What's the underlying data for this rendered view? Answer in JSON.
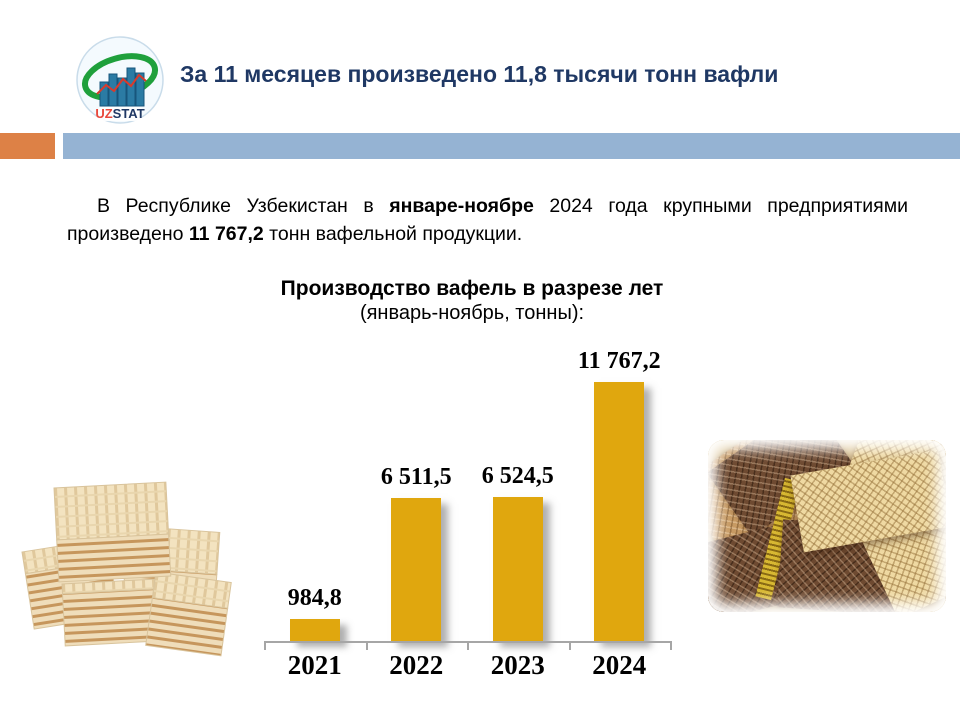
{
  "slide": {
    "title": "За 11 месяцев произведено 11,8 тысячи тонн вафли",
    "logo": {
      "uz": "UZ",
      "stat": "STAT"
    },
    "paragraph": {
      "line1_a": "В Республике Узбекистан в ",
      "line1_b": "январе-ноябре",
      "line1_c": " 2024 года крупными предприятиями",
      "line2_a": "произведено ",
      "line2_b": "11 767,2",
      "line2_c": " тонн вафельной продукции."
    },
    "colors": {
      "title_navy": "#1F3864",
      "band_orange": "#DD8146",
      "band_blue": "#95B3D3",
      "bar_gold": "#E0A70E",
      "axis_gray": "#A6A6A6"
    }
  },
  "chart_data": {
    "type": "bar",
    "title": "Производство вафель в разрезе лет",
    "subtitle": "(январь-ноябрь,  тонны):",
    "categories": [
      "2021",
      "2022",
      "2023",
      "2024"
    ],
    "values": [
      984.8,
      6511.5,
      6524.5,
      11767.2
    ],
    "value_labels": [
      "984,8",
      "6 511,5",
      "6 524,5",
      "11 767,2"
    ],
    "xlabel": "",
    "ylabel": "",
    "ylim": [
      0,
      12000
    ],
    "grid": false,
    "legend": false,
    "bar_color": "#E0A70E",
    "data_label_position": "above-bar"
  }
}
